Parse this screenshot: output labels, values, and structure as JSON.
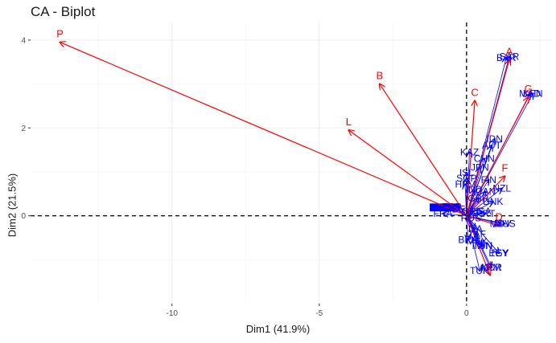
{
  "chart_data": {
    "type": "scatter",
    "title": "CA - Biplot",
    "xlabel": "Dim1 (41.9%)",
    "ylabel": "Dim2 (21.5%)",
    "xlim": [
      -14.8,
      2.9
    ],
    "ylim": [
      -2.0,
      4.4
    ],
    "x_ticks": [
      -10,
      -5,
      0
    ],
    "x_tick_labels": [
      "-10",
      "-5",
      "0"
    ],
    "y_ticks": [
      0,
      2,
      4
    ],
    "y_tick_labels": [
      "0",
      "2",
      "4"
    ],
    "grid": true,
    "reference_lines": {
      "x": 0,
      "y": 0,
      "style": "dashed"
    },
    "colors": {
      "column_points": "#ff0000",
      "row_points": "#0000ff",
      "axis_text": "#4d4d4d",
      "grid": "#ebebeb"
    },
    "column_arrows": [
      {
        "label": "P",
        "x": -13.8,
        "y": 3.95
      },
      {
        "label": "B",
        "x": -2.95,
        "y": 3.0
      },
      {
        "label": "L",
        "x": -4.0,
        "y": 1.95
      },
      {
        "label": "C",
        "x": 0.28,
        "y": 2.62
      },
      {
        "label": "F",
        "x": 1.3,
        "y": 0.9
      },
      {
        "label": "A",
        "x": 1.45,
        "y": 3.55
      },
      {
        "label": "G",
        "x": 2.1,
        "y": 2.7
      },
      {
        "label": "D",
        "x": 1.1,
        "y": -0.22
      },
      {
        "label": "E",
        "x": 0.8,
        "y": -1.35
      }
    ],
    "row_labels": [
      {
        "label": "SAR",
        "x": 1.45,
        "y": 3.62
      },
      {
        "label": "BAR",
        "x": 1.35,
        "y": 3.6
      },
      {
        "label": "KEN",
        "x": 2.25,
        "y": 2.78
      },
      {
        "label": "MAD",
        "x": 2.15,
        "y": 2.78
      },
      {
        "label": "IDN",
        "x": 0.95,
        "y": 1.75
      },
      {
        "label": "AUT",
        "x": 0.85,
        "y": 1.6
      },
      {
        "label": "KAZ",
        "x": 0.1,
        "y": 1.45
      },
      {
        "label": "ISL",
        "x": 0.0,
        "y": 0.98
      },
      {
        "label": "SGP",
        "x": 0.0,
        "y": 0.85
      },
      {
        "label": "HRV",
        "x": -0.05,
        "y": 0.72
      },
      {
        "label": "NZL",
        "x": 1.2,
        "y": 0.62
      },
      {
        "label": "FIN",
        "x": 0.75,
        "y": 0.82
      },
      {
        "label": "DNK",
        "x": 0.9,
        "y": 0.32
      },
      {
        "label": "PRT",
        "x": 0.65,
        "y": 0.05
      },
      {
        "label": "MUS",
        "x": 1.3,
        "y": -0.18
      },
      {
        "label": "MDV",
        "x": 1.15,
        "y": -0.18
      },
      {
        "label": "ZAF",
        "x": 0.35,
        "y": -0.42
      },
      {
        "label": "TUN",
        "x": 0.55,
        "y": -0.68
      },
      {
        "label": "TWN",
        "x": 0.5,
        "y": -0.68
      },
      {
        "label": "TUR",
        "x": 0.45,
        "y": -1.25
      },
      {
        "label": "TEY",
        "x": 1.1,
        "y": -0.85
      },
      {
        "label": "EGY",
        "x": 1.1,
        "y": -0.85
      },
      {
        "label": "KOR",
        "x": 0.85,
        "y": -1.18
      },
      {
        "label": "ARM",
        "x": 0.8,
        "y": -1.18
      },
      {
        "label": "GRC",
        "x": 0.2,
        "y": 0.1
      },
      {
        "label": "ITA",
        "x": 0.3,
        "y": -0.3
      },
      {
        "label": "ESP",
        "x": -0.5,
        "y": 0.2
      },
      {
        "label": "FRA",
        "x": -0.8,
        "y": 0.05
      },
      {
        "label": "DEU",
        "x": -0.15,
        "y": 0.15
      },
      {
        "label": "GBR",
        "x": 0.4,
        "y": 0.4
      },
      {
        "label": "USA",
        "x": 0.5,
        "y": 0.1
      },
      {
        "label": "CAN",
        "x": 0.65,
        "y": 0.55
      },
      {
        "label": "JPN",
        "x": 0.45,
        "y": 1.1
      },
      {
        "label": "CHN",
        "x": 0.6,
        "y": 1.3
      },
      {
        "label": "IND",
        "x": 0.25,
        "y": 0.6
      },
      {
        "label": "RUS",
        "x": 0.15,
        "y": -0.05
      },
      {
        "label": "BRA",
        "x": 0.05,
        "y": -0.55
      },
      {
        "label": "MEX",
        "x": 0.35,
        "y": -0.58
      }
    ]
  }
}
